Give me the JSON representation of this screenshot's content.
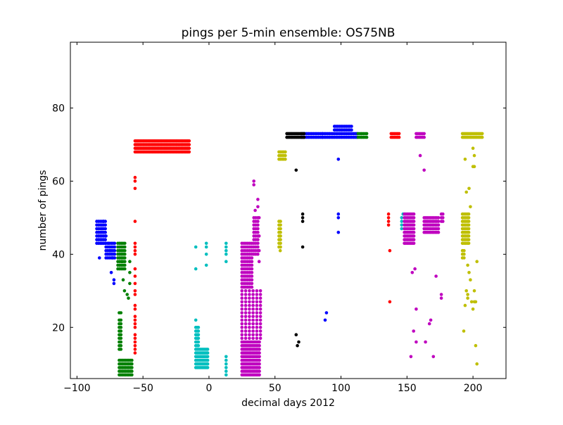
{
  "chart_data": {
    "type": "scatter",
    "title": "pings per 5-min ensemble: OS75NB",
    "xlabel": "decimal days 2012",
    "ylabel": "number of pings",
    "xlim": [
      -105,
      225
    ],
    "ylim": [
      6,
      98
    ],
    "xticks": [
      -100,
      -50,
      0,
      50,
      100,
      150,
      200
    ],
    "yticks": [
      20,
      40,
      60,
      80
    ],
    "xtick_labels": [
      "−100",
      "−50",
      "0",
      "50",
      "100",
      "150",
      "200"
    ],
    "ytick_labels": [
      "20",
      "40",
      "60",
      "80"
    ],
    "grid": false,
    "legend": "none",
    "series": [
      {
        "color": "#0000ff",
        "points": [
          [
            -83,
            39
          ],
          [
            -81,
            47
          ],
          [
            -80,
            49
          ],
          [
            -78,
            45
          ],
          [
            -76,
            43
          ],
          [
            -75,
            41
          ],
          [
            -74,
            35
          ],
          [
            -73,
            39
          ],
          [
            -72,
            33
          ],
          [
            -72,
            32
          ],
          [
            88,
            22
          ],
          [
            89,
            24
          ],
          [
            98,
            66
          ],
          [
            98,
            51
          ],
          [
            98,
            46
          ],
          [
            98,
            50
          ]
        ],
        "clusters": [
          {
            "x0": -85,
            "x1": -78,
            "step": 1.3,
            "y": [
              43,
              44,
              45,
              46,
              47,
              48,
              49
            ]
          },
          {
            "x0": -78,
            "x1": -71,
            "step": 1.3,
            "y": [
              39,
              40,
              41,
              42,
              43
            ]
          },
          {
            "x0": 70,
            "x1": 86,
            "step": 1.3,
            "y": [
              72,
              73
            ]
          },
          {
            "x0": 86,
            "x1": 112,
            "step": 1.3,
            "y": [
              72,
              73
            ]
          },
          {
            "x0": 95,
            "x1": 108,
            "step": 1.3,
            "y": [
              74,
              75
            ]
          }
        ]
      },
      {
        "color": "#008000",
        "points": [
          [
            -66,
            38
          ],
          [
            -65,
            33
          ],
          [
            -64,
            30
          ],
          [
            -62,
            29
          ],
          [
            -61,
            28
          ],
          [
            -60,
            38
          ],
          [
            -60,
            35
          ],
          [
            -60,
            32
          ]
        ],
        "clusters": [
          {
            "x0": -69,
            "x1": -63,
            "step": 1.3,
            "y": [
              36,
              37,
              38,
              39,
              40,
              41,
              42,
              43
            ]
          },
          {
            "x0": -68,
            "x1": -66,
            "step": 1.3,
            "y": [
              14,
              15,
              16,
              17,
              18,
              19,
              20,
              21,
              22,
              24
            ]
          },
          {
            "x0": -68,
            "x1": -58,
            "step": 1.2,
            "y": [
              7,
              8,
              9,
              10,
              11
            ]
          },
          {
            "x0": 113,
            "x1": 120,
            "step": 1.3,
            "y": [
              72,
              73
            ]
          }
        ]
      },
      {
        "color": "#ff0000",
        "points": [
          [
            -56,
            61
          ],
          [
            -56,
            60
          ],
          [
            -56,
            58
          ],
          [
            -56,
            49
          ],
          [
            -56,
            43
          ],
          [
            -56,
            42
          ],
          [
            -56,
            41
          ],
          [
            -56,
            40
          ],
          [
            -56,
            36
          ],
          [
            -56,
            34
          ],
          [
            -56,
            32
          ],
          [
            -56,
            30
          ],
          [
            -56,
            29
          ],
          [
            -56,
            26
          ],
          [
            -56,
            25
          ],
          [
            -56,
            23
          ],
          [
            -56,
            22
          ],
          [
            -56,
            21
          ],
          [
            -56,
            20
          ],
          [
            -56,
            18
          ],
          [
            -56,
            17
          ],
          [
            -56,
            16
          ],
          [
            -56,
            15
          ],
          [
            -56,
            14
          ],
          [
            -56,
            13
          ],
          [
            137,
            41
          ],
          [
            137,
            27
          ],
          [
            136,
            51
          ],
          [
            136,
            50
          ],
          [
            136,
            49
          ],
          [
            136,
            48
          ]
        ],
        "clusters": [
          {
            "x0": -56,
            "x1": -15,
            "step": 1.0,
            "y": [
              68,
              69,
              70,
              71
            ]
          },
          {
            "x0": 138,
            "x1": 144,
            "step": 1.2,
            "y": [
              72,
              73
            ]
          }
        ]
      },
      {
        "color": "#00bfbf",
        "points": [
          [
            -10,
            42
          ],
          [
            -10,
            36
          ],
          [
            -10,
            22
          ],
          [
            -2,
            43
          ],
          [
            -2,
            42
          ],
          [
            -2,
            40
          ],
          [
            -2,
            37
          ],
          [
            13,
            43
          ],
          [
            13,
            42
          ],
          [
            13,
            41
          ],
          [
            13,
            40
          ],
          [
            13,
            38
          ],
          [
            13,
            12
          ],
          [
            13,
            11
          ],
          [
            13,
            10
          ],
          [
            13,
            9
          ],
          [
            13,
            8
          ],
          [
            13,
            7
          ],
          [
            146,
            50
          ],
          [
            146,
            49
          ],
          [
            146,
            48
          ],
          [
            146,
            47
          ],
          [
            147,
            51
          ],
          [
            148,
            51
          ]
        ],
        "clusters": [
          {
            "x0": -10,
            "x1": -1,
            "step": 1.0,
            "y": [
              9,
              10,
              11,
              12,
              13,
              14
            ]
          },
          {
            "x0": -10,
            "x1": -8,
            "step": 1.0,
            "y": [
              15,
              16,
              17,
              18,
              19,
              20
            ]
          }
        ]
      },
      {
        "color": "#bf00bf",
        "points": [
          [
            34,
            60
          ],
          [
            34,
            59
          ],
          [
            35,
            52
          ],
          [
            37,
            55
          ],
          [
            37,
            53
          ],
          [
            38,
            50
          ],
          [
            38,
            45
          ],
          [
            38,
            41
          ],
          [
            38,
            38
          ],
          [
            156,
            36
          ],
          [
            154,
            35
          ],
          [
            157,
            25
          ],
          [
            155,
            19
          ],
          [
            157,
            16
          ],
          [
            153,
            12
          ],
          [
            163,
            63
          ],
          [
            160,
            67
          ],
          [
            164,
            16
          ],
          [
            170,
            12
          ],
          [
            168,
            22
          ],
          [
            167,
            21
          ],
          [
            172,
            34
          ],
          [
            176,
            29
          ],
          [
            176,
            28
          ]
        ],
        "clusters": [
          {
            "x0": 25,
            "x1": 39,
            "step": 1.1,
            "y": [
              7,
              8,
              9,
              10,
              11,
              12,
              13,
              14,
              15,
              16
            ]
          },
          {
            "x0": 25,
            "x1": 39,
            "step": 2.8,
            "y": [
              17,
              18,
              19,
              20,
              21,
              22,
              23,
              24,
              25,
              26,
              27,
              28,
              29,
              30
            ]
          },
          {
            "x0": 25,
            "x1": 33,
            "step": 1.5,
            "y": [
              31,
              32,
              33,
              34,
              35,
              36,
              37,
              38,
              39,
              40,
              41,
              42,
              43
            ]
          },
          {
            "x0": 34,
            "x1": 38,
            "step": 1.5,
            "y": [
              40,
              41,
              42,
              43,
              44,
              45,
              46,
              47,
              48,
              49,
              50
            ]
          },
          {
            "x0": 148,
            "x1": 156,
            "step": 1.2,
            "y": [
              43,
              44,
              45,
              46,
              47,
              48,
              49,
              50,
              51
            ]
          },
          {
            "x0": 157,
            "x1": 163,
            "step": 1.2,
            "y": [
              72,
              73
            ]
          },
          {
            "x0": 163,
            "x1": 174,
            "step": 1.2,
            "y": [
              46,
              47,
              48,
              49,
              50
            ]
          },
          {
            "x0": 176,
            "x1": 178,
            "step": 1.2,
            "y": [
              49,
              50,
              51
            ]
          }
        ]
      },
      {
        "color": "#000000",
        "points": [
          [
            66,
            63
          ],
          [
            66,
            18
          ],
          [
            67,
            15
          ],
          [
            68,
            16
          ],
          [
            71,
            51
          ],
          [
            71,
            50
          ],
          [
            71,
            49
          ],
          [
            71,
            42
          ]
        ],
        "clusters": [
          {
            "x0": 59,
            "x1": 72,
            "step": 1.0,
            "y": [
              72,
              73
            ]
          }
        ]
      },
      {
        "color": "#bfbf00",
        "points": [
          [
            54,
            41
          ],
          [
            194,
            66
          ],
          [
            195,
            57
          ],
          [
            197,
            58
          ],
          [
            198,
            53
          ],
          [
            196,
            37
          ],
          [
            197,
            35
          ],
          [
            198,
            33
          ],
          [
            196,
            29
          ],
          [
            196,
            28
          ],
          [
            194,
            26
          ],
          [
            195,
            30
          ],
          [
            193,
            19
          ],
          [
            199,
            27
          ],
          [
            201,
            30
          ],
          [
            201,
            27
          ],
          [
            200,
            25
          ],
          [
            202,
            27
          ],
          [
            202,
            15
          ],
          [
            203,
            10
          ],
          [
            203,
            38
          ],
          [
            200,
            69
          ],
          [
            201,
            67
          ],
          [
            200,
            64
          ],
          [
            201,
            64
          ]
        ],
        "clusters": [
          {
            "x0": 53,
            "x1": 58,
            "step": 1.2,
            "y": [
              66,
              67,
              68
            ]
          },
          {
            "x0": 53,
            "x1": 55,
            "step": 1.2,
            "y": [
              42,
              43,
              44,
              45,
              46,
              47,
              48,
              49
            ]
          },
          {
            "x0": 192,
            "x1": 207,
            "step": 1.0,
            "y": [
              72,
              73
            ]
          },
          {
            "x0": 192,
            "x1": 197,
            "step": 1.2,
            "y": [
              43,
              44,
              45,
              46,
              47,
              48,
              49,
              50,
              51
            ]
          },
          {
            "x0": 192,
            "x1": 194,
            "step": 1.2,
            "y": [
              39,
              40,
              41
            ]
          }
        ]
      }
    ]
  }
}
